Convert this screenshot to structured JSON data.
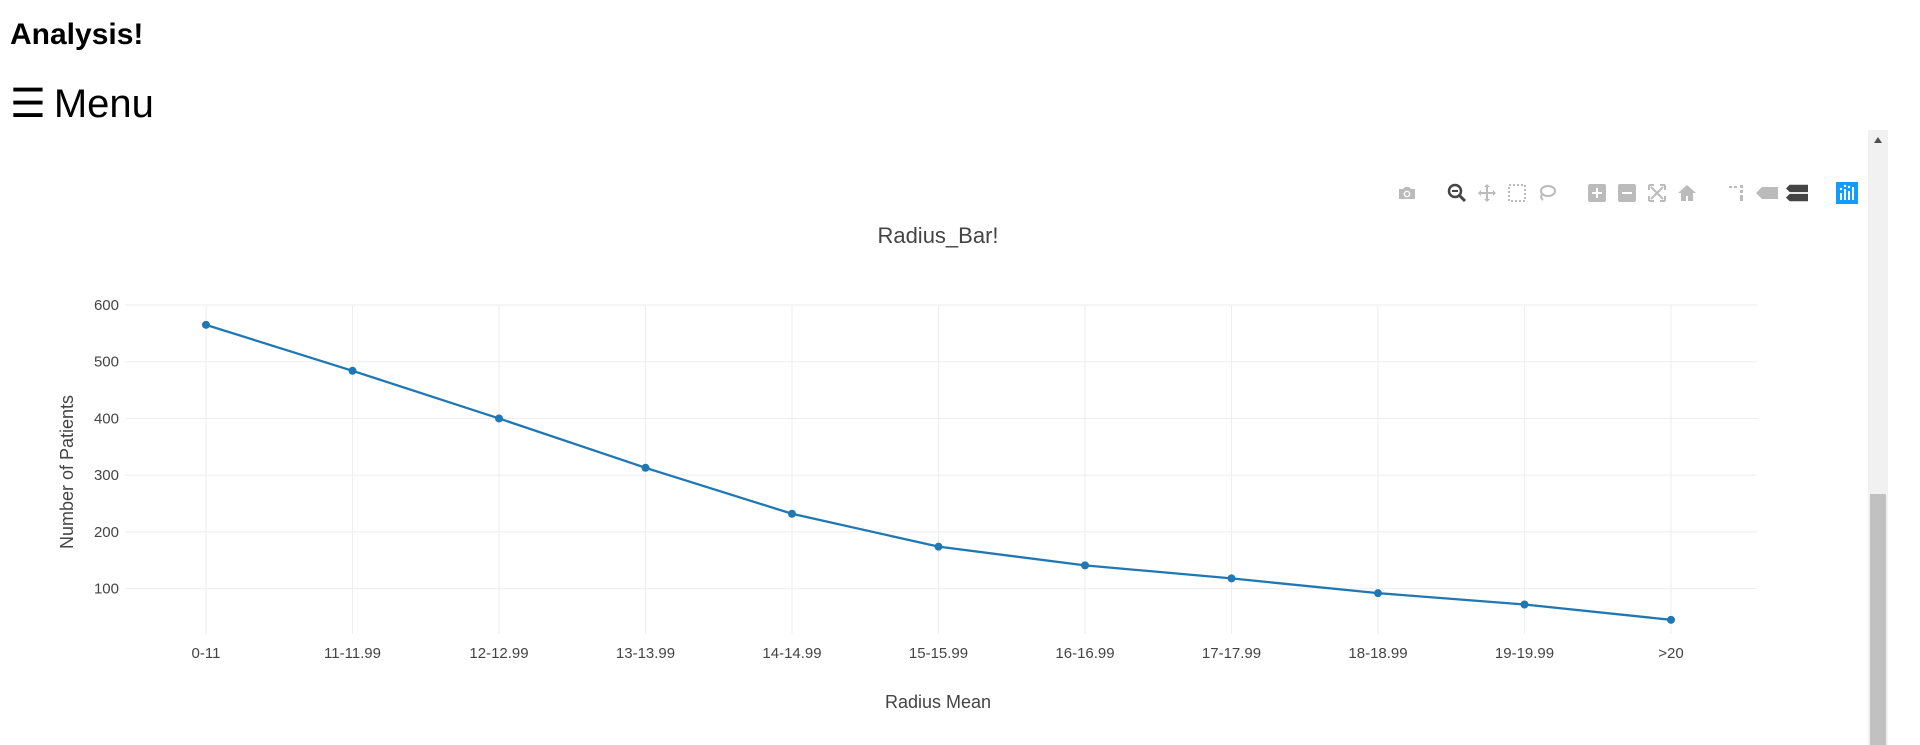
{
  "page": {
    "title": "Analysis!",
    "menu_glyph": "☰",
    "menu_label": "Menu"
  },
  "modebar": {
    "icons": [
      "camera-icon",
      "zoom-icon",
      "pan-icon",
      "box-select-icon",
      "lasso-select-icon",
      "zoom-in-icon",
      "zoom-out-icon",
      "autoscale-icon",
      "reset-axes-icon",
      "spike-lines-icon",
      "hover-closest-icon",
      "hover-compare-icon",
      "plotly-logo-icon"
    ],
    "active_color": "#444444",
    "inactive_color": "#bbbbbb",
    "logo_color": "#119dff"
  },
  "chart_data": {
    "type": "line",
    "title": "Radius_Bar!",
    "xlabel": "Radius Mean",
    "ylabel": "Number of Patients",
    "categories": [
      "0-11",
      "11-11.99",
      "12-12.99",
      "13-13.99",
      "14-14.99",
      "15-15.99",
      "16-16.99",
      "17-17.99",
      "18-18.99",
      "19-19.99",
      ">20"
    ],
    "values": [
      565,
      484,
      400,
      313,
      232,
      174,
      141,
      118,
      92,
      72,
      45
    ],
    "yticks": [
      100,
      200,
      300,
      400,
      500,
      600
    ],
    "ylim": [
      20,
      600
    ],
    "grid": true,
    "line_color": "#1f77b4",
    "markers": true
  }
}
